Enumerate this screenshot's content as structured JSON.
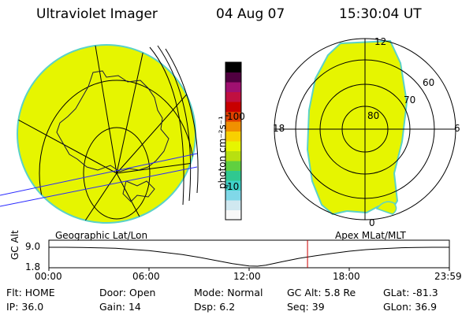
{
  "header": {
    "instrument": "Ultraviolet Imager",
    "date": "04 Aug 07",
    "time": "15:30:04 UT"
  },
  "colors": {
    "fill": "#e6f500",
    "fill_edge": "#5ad2c8",
    "grid_line": "#000000",
    "coast_line": "#1a1a3a",
    "time_marker": "#cc0000",
    "magnetic_line": "#2a2aff"
  },
  "colorbar": {
    "label": "photon cm⁻²s⁻¹",
    "ticks": [
      "100",
      "10"
    ],
    "scale": "log",
    "colors": [
      "#f8f8f8",
      "#d0e8f0",
      "#80d8e8",
      "#40d0c8",
      "#30c890",
      "#60d040",
      "#b8e010",
      "#e6f500",
      "#f8d000",
      "#f09000",
      "#e04000",
      "#c80000",
      "#c01040",
      "#a01070",
      "#500040",
      "#000000"
    ]
  },
  "geo_map": {
    "label": "Geographic Lat/Lon"
  },
  "polar_map": {
    "label": "Apex MLat/MLT",
    "lat_labels": [
      "80",
      "70",
      "60"
    ],
    "mlt_labels": {
      "top": "12",
      "bottom": "0",
      "left": "18",
      "right": "6"
    }
  },
  "chart_data": {
    "type": "line",
    "title": "",
    "ylabel": "GC Alt",
    "yticks": [
      "9.0",
      "1.8"
    ],
    "xticks": [
      "00:00",
      "06:00",
      "12:00",
      "18:00",
      "23:59"
    ],
    "ylim": [
      1.8,
      9.0
    ],
    "x_hours": [
      0,
      1,
      2,
      3,
      4,
      5,
      6,
      7,
      8,
      9,
      10,
      11,
      12,
      12.5,
      13,
      14,
      15,
      16,
      17,
      18,
      19,
      20,
      21,
      22,
      23,
      23.98
    ],
    "y_alt": [
      9.0,
      9.0,
      8.9,
      8.8,
      8.6,
      8.2,
      7.7,
      7.0,
      6.2,
      5.2,
      4.0,
      2.8,
      1.9,
      1.8,
      2.2,
      3.5,
      4.8,
      5.8,
      6.7,
      7.5,
      8.1,
      8.5,
      8.8,
      8.9,
      9.0,
      9.0
    ],
    "marker_hour": 15.5
  },
  "info": {
    "row1": [
      {
        "label": "Flt:",
        "value": "HOME"
      },
      {
        "label": "Door:",
        "value": "Open"
      },
      {
        "label": "Mode:",
        "value": "Normal"
      },
      {
        "label": "GC Alt:",
        "value": "5.8 Re"
      },
      {
        "label": "GLat:",
        "value": "-81.3"
      }
    ],
    "row2": [
      {
        "label": "IP:",
        "value": "36.0"
      },
      {
        "label": "Gain:",
        "value": "14"
      },
      {
        "label": "Dsp:",
        "value": "6.2"
      },
      {
        "label": "Seq:",
        "value": "39"
      },
      {
        "label": "GLon:",
        "value": "36.9"
      }
    ]
  }
}
